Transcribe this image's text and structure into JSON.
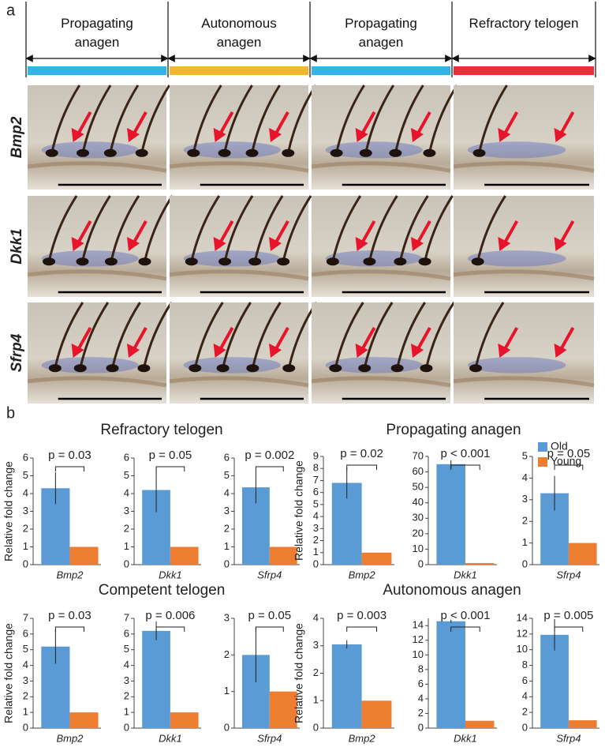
{
  "panel_labels": [
    "a",
    "b"
  ],
  "panel_a": {
    "stages": [
      "Propagating anagen",
      "Autonomous anagen",
      "Propagating anagen",
      "Refractory telogen"
    ],
    "stage_colors": [
      "#33b3e6",
      "#f2b731",
      "#33b3e6",
      "#e8303a"
    ],
    "genes": [
      "Bmp2",
      "Dkk1",
      "Sfrp4"
    ]
  },
  "group_titles": [
    "Refractory telogen",
    "Propagating anagen",
    "Competent telogen",
    "Autonomous anagen"
  ],
  "chart_data": [
    {
      "type": "bar",
      "ylabel": "Relative fold change",
      "annotation": "p = 0.03",
      "categories": [
        "Bmp2"
      ],
      "ylim": [
        0,
        6
      ],
      "yticks": [
        0,
        1,
        2,
        3,
        4,
        5,
        6
      ],
      "series": [
        {
          "name": "Old",
          "color": "#5b9bd5",
          "values": [
            4.3
          ],
          "errors": [
            0.9
          ]
        },
        {
          "name": "Young",
          "color": "#ed7d31",
          "values": [
            1.0
          ]
        }
      ]
    },
    {
      "type": "bar",
      "annotation": "p = 0.05",
      "categories": [
        "Dkk1"
      ],
      "ylim": [
        0,
        6
      ],
      "yticks": [
        0,
        1,
        2,
        3,
        4,
        5,
        6
      ],
      "series": [
        {
          "name": "Old",
          "color": "#5b9bd5",
          "values": [
            4.2
          ],
          "errors": [
            1.25
          ]
        },
        {
          "name": "Young",
          "color": "#ed7d31",
          "values": [
            1.0
          ]
        }
      ]
    },
    {
      "type": "bar",
      "annotation": "p = 0.002",
      "categories": [
        "Sfrp4"
      ],
      "ylim": [
        0,
        6
      ],
      "yticks": [
        0,
        1,
        2,
        3,
        4,
        5,
        6
      ],
      "series": [
        {
          "name": "Old",
          "color": "#5b9bd5",
          "values": [
            4.35
          ],
          "errors": [
            0.9
          ]
        },
        {
          "name": "Young",
          "color": "#ed7d31",
          "values": [
            1.0
          ]
        }
      ]
    },
    {
      "type": "bar",
      "ylabel": "Relative fold change",
      "annotation": "p = 0.02",
      "categories": [
        "Bmp2"
      ],
      "ylim": [
        0,
        9
      ],
      "yticks": [
        0,
        1,
        2,
        3,
        4,
        5,
        6,
        7,
        8,
        9
      ],
      "series": [
        {
          "name": "Old",
          "color": "#5b9bd5",
          "values": [
            6.8
          ],
          "errors": [
            1.3
          ]
        },
        {
          "name": "Young",
          "color": "#ed7d31",
          "values": [
            1.0
          ]
        }
      ]
    },
    {
      "type": "bar",
      "annotation": "p < 0.001",
      "categories": [
        "Dkk1"
      ],
      "ylim": [
        0,
        70
      ],
      "yticks": [
        0,
        10,
        20,
        30,
        40,
        50,
        60,
        70
      ],
      "series": [
        {
          "name": "Old",
          "color": "#5b9bd5",
          "values": [
            65
          ],
          "errors": [
            2.5
          ]
        },
        {
          "name": "Young",
          "color": "#ed7d31",
          "values": [
            1.0
          ]
        }
      ]
    },
    {
      "type": "bar",
      "annotation": "p = 0.05",
      "categories": [
        "Sfrp4"
      ],
      "ylim": [
        0,
        5
      ],
      "yticks": [
        0,
        1,
        2,
        3,
        4,
        5
      ],
      "series": [
        {
          "name": "Old",
          "color": "#5b9bd5",
          "values": [
            3.3
          ],
          "errors": [
            0.8
          ]
        },
        {
          "name": "Young",
          "color": "#ed7d31",
          "values": [
            1.0
          ]
        }
      ]
    },
    {
      "type": "bar",
      "ylabel": "Relative fold change",
      "annotation": "p = 0.03",
      "categories": [
        "Bmp2"
      ],
      "ylim": [
        0,
        7
      ],
      "yticks": [
        0,
        1,
        2,
        3,
        4,
        5,
        6,
        7
      ],
      "series": [
        {
          "name": "Old",
          "color": "#5b9bd5",
          "values": [
            5.2
          ],
          "errors": [
            1.1
          ]
        },
        {
          "name": "Young",
          "color": "#ed7d31",
          "values": [
            1.0
          ]
        }
      ]
    },
    {
      "type": "bar",
      "annotation": "p = 0.006",
      "categories": [
        "Dkk1"
      ],
      "ylim": [
        0,
        7
      ],
      "yticks": [
        0,
        1,
        2,
        3,
        4,
        5,
        6,
        7
      ],
      "series": [
        {
          "name": "Old",
          "color": "#5b9bd5",
          "values": [
            6.2
          ],
          "errors": [
            0.6
          ]
        },
        {
          "name": "Young",
          "color": "#ed7d31",
          "values": [
            1.0
          ]
        }
      ]
    },
    {
      "type": "bar",
      "annotation": "p = 0.05",
      "categories": [
        "Sfrp4"
      ],
      "ylim": [
        0,
        3
      ],
      "yticks": [
        0,
        1,
        2,
        3
      ],
      "series": [
        {
          "name": "Old",
          "color": "#5b9bd5",
          "values": [
            2.0
          ],
          "errors": [
            0.75
          ]
        },
        {
          "name": "Young",
          "color": "#ed7d31",
          "values": [
            1.0
          ]
        }
      ]
    },
    {
      "type": "bar",
      "ylabel": "Relative fold change",
      "annotation": "p = 0.003",
      "categories": [
        "Bmp2"
      ],
      "ylim": [
        0,
        4
      ],
      "yticks": [
        0,
        1,
        2,
        3,
        4
      ],
      "series": [
        {
          "name": "Old",
          "color": "#5b9bd5",
          "values": [
            3.05
          ],
          "errors": [
            0.15
          ]
        },
        {
          "name": "Young",
          "color": "#ed7d31",
          "values": [
            1.0
          ]
        }
      ]
    },
    {
      "type": "bar",
      "annotation": "p < 0.001",
      "categories": [
        "Dkk1"
      ],
      "ylim": [
        0,
        15
      ],
      "yticks": [
        0,
        2,
        4,
        6,
        8,
        10,
        12,
        14
      ],
      "series": [
        {
          "name": "Old",
          "color": "#5b9bd5",
          "values": [
            14.6
          ],
          "errors": [
            0.2
          ]
        },
        {
          "name": "Young",
          "color": "#ed7d31",
          "values": [
            1.0
          ]
        }
      ]
    },
    {
      "type": "bar",
      "annotation": "p = 0.005",
      "categories": [
        "Sfrp4"
      ],
      "ylim": [
        0,
        14
      ],
      "yticks": [
        0,
        2,
        4,
        6,
        8,
        10,
        12,
        14
      ],
      "series": [
        {
          "name": "Old",
          "color": "#5b9bd5",
          "values": [
            11.9
          ],
          "errors": [
            2.0
          ]
        },
        {
          "name": "Young",
          "color": "#ed7d31",
          "values": [
            1.0
          ]
        }
      ]
    }
  ]
}
